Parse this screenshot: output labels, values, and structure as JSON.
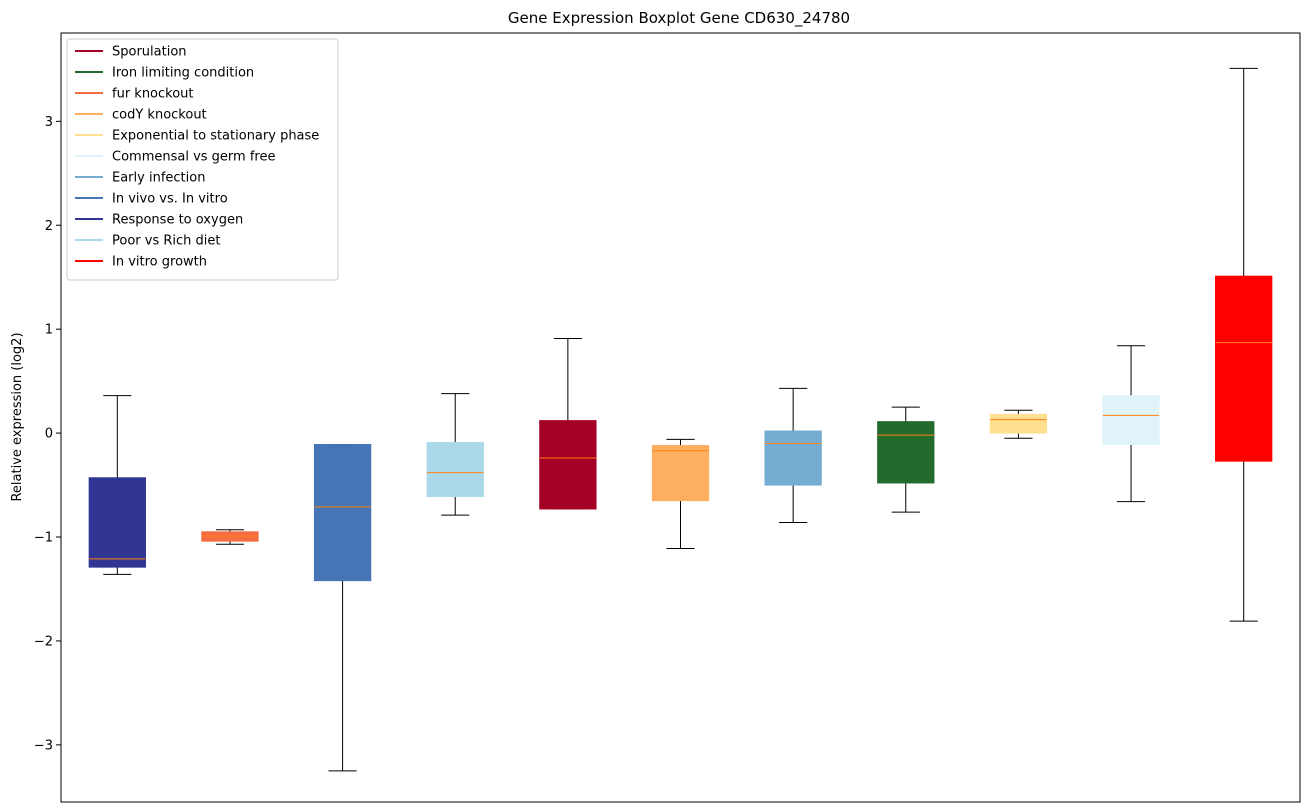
{
  "chart_data": {
    "type": "boxplot",
    "title": "Gene Expression Boxplot Gene CD630_24780",
    "xlabel": "",
    "ylabel": "Relative expression (log2)",
    "ylim": [
      -3.55,
      3.85
    ],
    "yticks": [
      -3,
      -2,
      -1,
      0,
      1,
      2,
      3
    ],
    "ytick_labels": [
      "−3",
      "−2",
      "−1",
      "0",
      "1",
      "2",
      "3"
    ],
    "median_color": "#ff7f0e",
    "legend_position": "top-left",
    "legend": [
      {
        "label": "Sporulation",
        "color": "#a50026"
      },
      {
        "label": "Iron limiting condition",
        "color": "#226b2d"
      },
      {
        "label": "fur knockout",
        "color": "#f46d43"
      },
      {
        "label": "codY knockout",
        "color": "#fdae61"
      },
      {
        "label": "Exponential to stationary phase",
        "color": "#fee090"
      },
      {
        "label": "Commensal vs germ free",
        "color": "#e0f3f8"
      },
      {
        "label": "Early infection",
        "color": "#74add1"
      },
      {
        "label": "In vivo vs. In vitro",
        "color": "#4575b4"
      },
      {
        "label": "Response to oxygen",
        "color": "#313695"
      },
      {
        "label": "Poor vs Rich diet",
        "color": "#abd9e9"
      },
      {
        "label": "In vitro growth",
        "color": "#ff0000"
      }
    ],
    "boxes": [
      {
        "name": "Response to oxygen",
        "color": "#313695",
        "whisker_low": -1.36,
        "q1": -1.29,
        "median": -1.21,
        "q3": -0.43,
        "whisker_high": 0.36
      },
      {
        "name": "fur knockout",
        "color": "#f46d43",
        "whisker_low": -1.07,
        "q1": -1.04,
        "median": -0.99,
        "q3": -0.95,
        "whisker_high": -0.93
      },
      {
        "name": "In vivo vs. In vitro",
        "color": "#4575b4",
        "whisker_low": -3.25,
        "q1": -1.42,
        "median": -0.71,
        "q3": -0.11,
        "whisker_high": -0.11
      },
      {
        "name": "Poor vs Rich diet",
        "color": "#abd9e9",
        "whisker_low": -0.79,
        "q1": -0.61,
        "median": -0.38,
        "q3": -0.09,
        "whisker_high": 0.38
      },
      {
        "name": "Sporulation",
        "color": "#a50026",
        "whisker_low": -0.73,
        "q1": -0.73,
        "median": -0.24,
        "q3": 0.12,
        "whisker_high": 0.91
      },
      {
        "name": "codY knockout",
        "color": "#fdae61",
        "whisker_low": -1.11,
        "q1": -0.65,
        "median": -0.17,
        "q3": -0.12,
        "whisker_high": -0.06
      },
      {
        "name": "Early infection",
        "color": "#74add1",
        "whisker_low": -0.86,
        "q1": -0.5,
        "median": -0.1,
        "q3": 0.02,
        "whisker_high": 0.43
      },
      {
        "name": "Iron limiting condition",
        "color": "#226b2d",
        "whisker_low": -0.76,
        "q1": -0.48,
        "median": -0.02,
        "q3": 0.11,
        "whisker_high": 0.25
      },
      {
        "name": "Exponential to stationary phase",
        "color": "#fee090",
        "whisker_low": -0.05,
        "q1": 0.0,
        "median": 0.13,
        "q3": 0.18,
        "whisker_high": 0.22
      },
      {
        "name": "Commensal vs germ free",
        "color": "#e0f3f8",
        "whisker_low": -0.66,
        "q1": -0.11,
        "median": 0.17,
        "q3": 0.36,
        "whisker_high": 0.84
      },
      {
        "name": "In vitro growth",
        "color": "#ff0000",
        "whisker_low": -1.81,
        "q1": -0.27,
        "median": 0.87,
        "q3": 1.51,
        "whisker_high": 3.51
      }
    ]
  }
}
